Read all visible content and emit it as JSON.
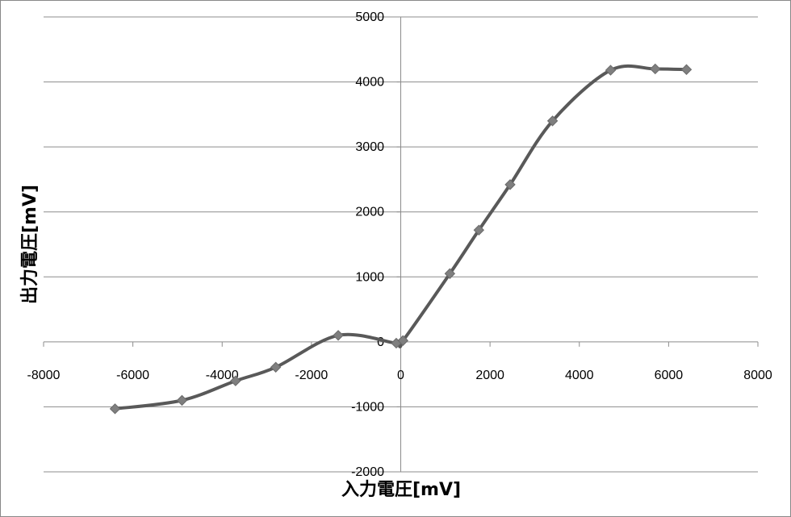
{
  "chart_data": {
    "type": "line",
    "title": "",
    "xlabel": "入力電圧[mV]",
    "ylabel": "出力電圧[mV]",
    "xlim": [
      -8000,
      8000
    ],
    "ylim": [
      -2000,
      5000
    ],
    "x_ticks": [
      -8000,
      -6000,
      -4000,
      -2000,
      0,
      2000,
      4000,
      6000,
      8000
    ],
    "y_ticks": [
      -2000,
      -1000,
      0,
      1000,
      2000,
      3000,
      4000,
      5000
    ],
    "x_tick_labels": [
      "-8000",
      "-6000",
      "-4000",
      "-2000",
      "0",
      "2000",
      "4000",
      "6000",
      "8000"
    ],
    "y_tick_labels": [
      "-2000",
      "-1000",
      "0",
      "1000",
      "2000",
      "3000",
      "4000",
      "5000"
    ],
    "grid": "horizontal",
    "legend": "none",
    "line_color": "#595959",
    "marker": "diamond",
    "smoothed": true,
    "series": [
      {
        "x": [
          -6400,
          -4900,
          -3700,
          -2800,
          -1400,
          -100,
          50,
          1100,
          1750,
          2450,
          3400,
          4700,
          5700,
          6400
        ],
        "y": [
          -1030,
          -900,
          -600,
          -390,
          100,
          -20,
          20,
          1050,
          1720,
          2420,
          3400,
          4180,
          4200,
          4190
        ]
      }
    ]
  }
}
